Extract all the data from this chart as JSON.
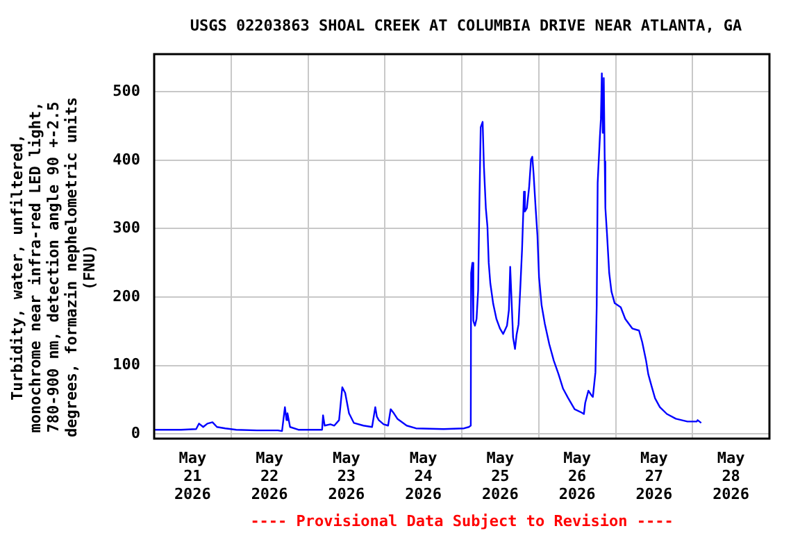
{
  "chart_data": {
    "type": "line",
    "title": "USGS 02203863 SHOAL CREEK AT COLUMBIA DRIVE NEAR ATLANTA, GA",
    "ylabel": "Turbidity, water, unfiltered,\nmonochrome near infra-red LED light,\n780-900 nm, detection angle 90 +-2.5\ndegrees, formazin nephelometric units\n(FNU)",
    "annotations": [
      "---- Provisional Data Subject to Revision ----"
    ],
    "x": [
      "2026-05-21T00:00",
      "2026-05-21T08:24",
      "2026-05-21T13:06",
      "2026-05-21T14:00",
      "2026-05-21T15:18",
      "2026-05-21T16:36",
      "2026-05-21T18:12",
      "2026-05-21T19:36",
      "2026-05-21T22:12",
      "2026-05-22T01:36",
      "2026-05-22T08:06",
      "2026-05-22T14:36",
      "2026-05-22T15:54",
      "2026-05-22T16:48",
      "2026-05-22T17:18",
      "2026-05-22T17:36",
      "2026-05-22T18:24",
      "2026-05-22T21:00",
      "2026-05-23T04:24",
      "2026-05-23T04:42",
      "2026-05-23T05:12",
      "2026-05-23T07:00",
      "2026-05-23T08:12",
      "2026-05-23T09:42",
      "2026-05-23T10:42",
      "2026-05-23T11:36",
      "2026-05-23T12:48",
      "2026-05-23T14:18",
      "2026-05-23T17:18",
      "2026-05-23T20:00",
      "2026-05-23T21:00",
      "2026-05-23T21:30",
      "2026-05-23T22:06",
      "2026-05-23T23:36",
      "2026-05-24T01:00",
      "2026-05-24T01:48",
      "2026-05-24T02:48",
      "2026-05-24T03:54",
      "2026-05-24T06:48",
      "2026-05-24T09:42",
      "2026-05-24T18:18",
      "2026-05-25T00:42",
      "2026-05-25T02:12",
      "2026-05-25T02:48",
      "2026-05-25T02:54",
      "2026-05-25T03:18",
      "2026-05-25T03:36",
      "2026-05-25T04:06",
      "2026-05-25T04:36",
      "2026-05-25T05:06",
      "2026-05-25T05:30",
      "2026-05-25T05:54",
      "2026-05-25T06:30",
      "2026-05-25T06:54",
      "2026-05-25T07:30",
      "2026-05-25T08:00",
      "2026-05-25T08:24",
      "2026-05-25T08:54",
      "2026-05-25T09:48",
      "2026-05-25T10:48",
      "2026-05-25T11:54",
      "2026-05-25T12:54",
      "2026-05-25T14:06",
      "2026-05-25T14:42",
      "2026-05-25T15:06",
      "2026-05-25T15:30",
      "2026-05-25T16:00",
      "2026-05-25T16:36",
      "2026-05-25T17:06",
      "2026-05-25T17:42",
      "2026-05-25T18:18",
      "2026-05-25T18:48",
      "2026-05-25T19:24",
      "2026-05-25T19:42",
      "2026-05-25T20:18",
      "2026-05-25T21:00",
      "2026-05-25T21:36",
      "2026-05-25T22:00",
      "2026-05-25T22:24",
      "2026-05-25T23:00",
      "2026-05-25T23:36",
      "2026-05-26T00:06",
      "2026-05-26T00:54",
      "2026-05-26T01:54",
      "2026-05-26T03:18",
      "2026-05-26T04:42",
      "2026-05-26T06:12",
      "2026-05-26T07:36",
      "2026-05-26T09:06",
      "2026-05-26T11:12",
      "2026-05-26T13:24",
      "2026-05-26T14:06",
      "2026-05-26T14:30",
      "2026-05-26T15:30",
      "2026-05-26T16:30",
      "2026-05-26T16:54",
      "2026-05-26T17:42",
      "2026-05-26T18:06",
      "2026-05-26T18:24",
      "2026-05-26T19:06",
      "2026-05-26T19:24",
      "2026-05-26T19:42",
      "2026-05-26T20:00",
      "2026-05-26T20:18",
      "2026-05-26T20:36",
      "2026-05-26T20:48",
      "2026-05-26T21:18",
      "2026-05-26T22:00",
      "2026-05-26T22:42",
      "2026-05-26T23:42",
      "2026-05-27T01:36",
      "2026-05-27T03:00",
      "2026-05-27T05:12",
      "2026-05-27T07:18",
      "2026-05-27T08:18",
      "2026-05-27T09:30",
      "2026-05-27T10:12",
      "2026-05-27T11:12",
      "2026-05-27T12:18",
      "2026-05-27T13:48",
      "2026-05-27T16:00",
      "2026-05-27T18:48",
      "2026-05-27T22:24",
      "2026-05-28T01:18",
      "2026-05-28T01:36",
      "2026-05-28T02:42"
    ],
    "series": [
      {
        "color": "#0000ff",
        "values": [
          6,
          6,
          7,
          15,
          10,
          15,
          17,
          10,
          8,
          6,
          5,
          5,
          4,
          39,
          20,
          30,
          10,
          6,
          6,
          27,
          12,
          14,
          12,
          20,
          68,
          60,
          30,
          16,
          12,
          10,
          39,
          25,
          20,
          14,
          12,
          36,
          30,
          22,
          12,
          8,
          7,
          8,
          10,
          12,
          235,
          250,
          165,
          158,
          168,
          210,
          340,
          448,
          456,
          391,
          330,
          303,
          250,
          220,
          190,
          168,
          154,
          146,
          158,
          181,
          244,
          198,
          141,
          124,
          145,
          160,
          218,
          269,
          354,
          325,
          330,
          360,
          401,
          405,
          380,
          333,
          290,
          229,
          188,
          161,
          131,
          107,
          87,
          66,
          53,
          36,
          31,
          29,
          45,
          63,
          56,
          54,
          90,
          188,
          367,
          435,
          460,
          527,
          440,
          520,
          398,
          330,
          293,
          235,
          208,
          191,
          185,
          168,
          154,
          151,
          134,
          107,
          87,
          70,
          52,
          39,
          29,
          22,
          18,
          18,
          20,
          16
        ]
      }
    ],
    "xlim": [
      "2026-05-21T00:00",
      "2026-05-29T00:00"
    ],
    "xticks": [
      {
        "value": "2026-05-21T12:00",
        "label": "May 21 2026"
      },
      {
        "value": "2026-05-22T00:00",
        "label": null
      },
      {
        "value": "2026-05-22T12:00",
        "label": "May 22 2026"
      },
      {
        "value": "2026-05-23T00:00",
        "label": null
      },
      {
        "value": "2026-05-23T12:00",
        "label": "May 23 2026"
      },
      {
        "value": "2026-05-24T00:00",
        "label": null
      },
      {
        "value": "2026-05-24T12:00",
        "label": "May 24 2026"
      },
      {
        "value": "2026-05-25T00:00",
        "label": null
      },
      {
        "value": "2026-05-25T12:00",
        "label": "May 25 2026"
      },
      {
        "value": "2026-05-26T00:00",
        "label": null
      },
      {
        "value": "2026-05-26T12:00",
        "label": "May 26 2026"
      },
      {
        "value": "2026-05-27T00:00",
        "label": null
      },
      {
        "value": "2026-05-27T12:00",
        "label": "May 27 2026"
      },
      {
        "value": "2026-05-28T00:00",
        "label": null
      },
      {
        "value": "2026-05-28T12:00",
        "label": "May 28 2026"
      }
    ],
    "ylim": [
      -7,
      555
    ],
    "yticks": [
      0,
      100,
      200,
      300,
      400,
      500
    ],
    "grid": true,
    "legend": false,
    "marker": "none",
    "line_style": "solid"
  }
}
